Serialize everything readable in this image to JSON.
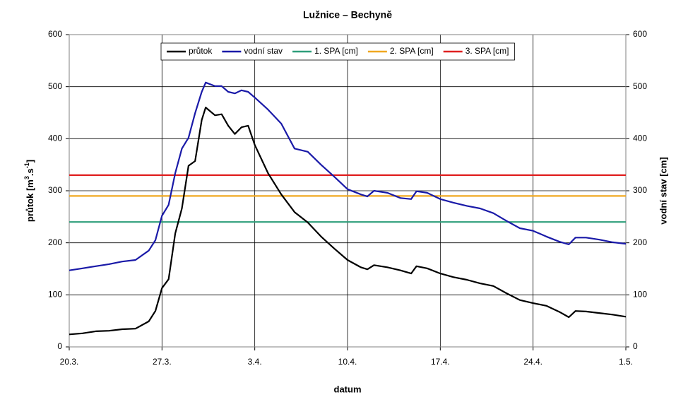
{
  "chart_data": {
    "type": "line",
    "title": "Lužnice – Bechyně",
    "xlabel": "datum",
    "ylabel": [
      "průtok [m",
      "3",
      ".s",
      "-1",
      "]"
    ],
    "y2label": "vodní stav [cm]",
    "xlim": [
      0,
      42
    ],
    "xticks": [
      {
        "value": 0,
        "label": "20.3."
      },
      {
        "value": 7,
        "label": "27.3."
      },
      {
        "value": 14,
        "label": "3.4."
      },
      {
        "value": 21,
        "label": "10.4."
      },
      {
        "value": 28,
        "label": "17.4."
      },
      {
        "value": 35,
        "label": "24.4."
      },
      {
        "value": 42,
        "label": "1.5."
      }
    ],
    "ylim": [
      0,
      600
    ],
    "yticks": [
      0,
      100,
      200,
      300,
      400,
      500,
      600
    ],
    "y2lim": [
      0,
      600
    ],
    "y2ticks": [
      0,
      100,
      200,
      300,
      400,
      500,
      600
    ],
    "grid": true,
    "legend": "top",
    "series": [
      {
        "name": "průtok",
        "color": "#000000",
        "x": [
          0,
          1,
          2,
          3,
          4,
          5,
          6,
          6.5,
          7,
          7.5,
          8,
          8.5,
          9,
          9.5,
          10,
          10.3,
          11,
          11.5,
          12,
          12.5,
          13,
          13.5,
          14,
          15,
          16,
          17,
          18,
          19,
          20,
          21,
          22,
          22.5,
          23,
          24,
          25,
          25.8,
          26.2,
          27,
          28,
          29,
          30,
          31,
          32,
          33,
          34,
          35,
          36,
          37,
          37.7,
          38.2,
          39,
          40,
          41,
          42
        ],
        "values": [
          24,
          26,
          30,
          31,
          34,
          35,
          49,
          69,
          113,
          130,
          218,
          266,
          348,
          357,
          436,
          460,
          445,
          447,
          425,
          409,
          422,
          425,
          388,
          334,
          293,
          259,
          239,
          212,
          189,
          167,
          153,
          149,
          157,
          153,
          147,
          141,
          155,
          151,
          141,
          134,
          129,
          122,
          117,
          103,
          90,
          84,
          79,
          67,
          57,
          69,
          68,
          65,
          62,
          58
        ]
      },
      {
        "name": "vodní stav",
        "color": "#1a1aa8",
        "axis": "y2",
        "x": [
          0,
          1,
          2,
          3,
          4,
          5,
          6,
          6.5,
          7,
          7.5,
          8,
          8.5,
          9,
          9.5,
          10,
          10.3,
          11,
          11.5,
          12,
          12.5,
          13,
          13.5,
          14,
          15,
          16,
          17,
          18,
          19,
          20,
          21,
          22,
          22.5,
          23,
          24,
          25,
          25.8,
          26.2,
          27,
          28,
          29,
          30,
          31,
          32,
          33,
          34,
          35,
          36,
          37,
          37.7,
          38.2,
          39,
          40,
          41,
          42
        ],
        "values": [
          147,
          151,
          155,
          159,
          164,
          167,
          185,
          205,
          252,
          273,
          334,
          381,
          402,
          449,
          490,
          508,
          501,
          501,
          490,
          487,
          493,
          490,
          479,
          456,
          429,
          381,
          375,
          350,
          327,
          303,
          293,
          289,
          300,
          296,
          286,
          284,
          299,
          296,
          284,
          277,
          271,
          266,
          257,
          242,
          228,
          223,
          212,
          202,
          197,
          210,
          210,
          206,
          201,
          198
        ]
      },
      {
        "name": "1. SPA [cm]",
        "color": "#2e9e7a",
        "axis": "y2",
        "x": [
          0,
          42
        ],
        "values": [
          240,
          240
        ]
      },
      {
        "name": "2. SPA [cm]",
        "color": "#f0a820",
        "axis": "y2",
        "x": [
          0,
          42
        ],
        "values": [
          290,
          290
        ]
      },
      {
        "name": "3. SPA [cm]",
        "color": "#e02020",
        "axis": "y2",
        "x": [
          0,
          42
        ],
        "values": [
          330,
          330
        ]
      }
    ]
  }
}
